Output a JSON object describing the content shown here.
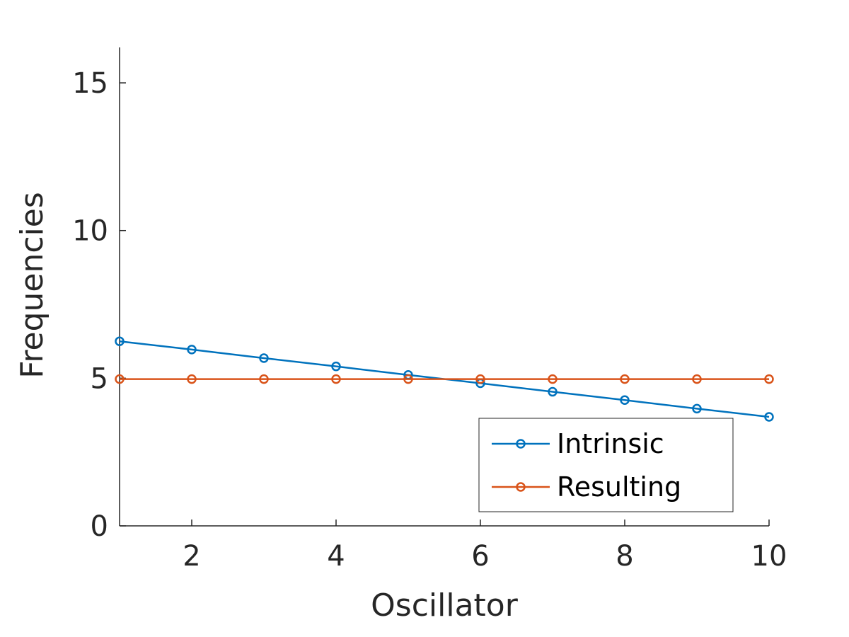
{
  "chart_data": {
    "type": "line",
    "title": "",
    "xlabel": "Oscillator",
    "ylabel": "Frequencies",
    "xlim": [
      1,
      10
    ],
    "ylim": [
      0,
      16.2
    ],
    "xticks": [
      2,
      4,
      6,
      8,
      10
    ],
    "yticks": [
      0,
      5,
      10,
      15
    ],
    "x": [
      1,
      2,
      3,
      4,
      5,
      6,
      7,
      8,
      9,
      10
    ],
    "series": [
      {
        "name": "Intrinsic",
        "color": "#0072BD",
        "marker": "circle",
        "values": [
          6.25,
          5.97,
          5.68,
          5.4,
          5.11,
          4.83,
          4.54,
          4.26,
          3.97,
          3.69
        ]
      },
      {
        "name": "Resulting",
        "color": "#D95319",
        "marker": "circle",
        "values": [
          4.97,
          4.97,
          4.97,
          4.97,
          4.97,
          4.97,
          4.97,
          4.97,
          4.97,
          4.97
        ]
      }
    ],
    "legend": {
      "position": "bottom-right"
    },
    "grid": false
  }
}
